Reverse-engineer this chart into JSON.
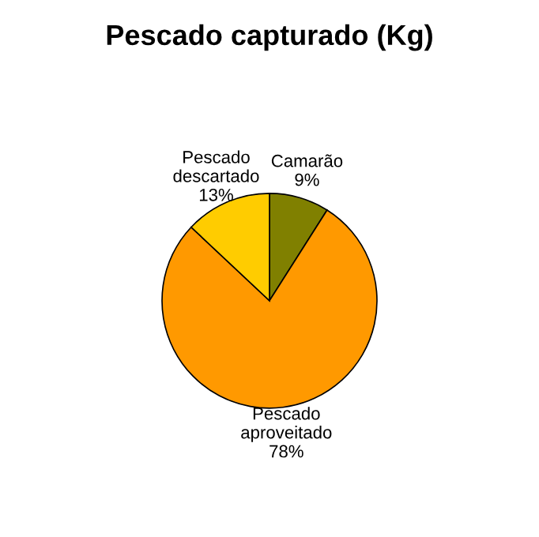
{
  "chart_data": {
    "type": "pie",
    "title": "Pescado capturado (Kg)",
    "categories": [
      "Camarão",
      "Pescado\naproveitado",
      "Pescado\ndescartado"
    ],
    "values": [
      9,
      78,
      13
    ],
    "value_labels": [
      "9%",
      "78%",
      "13%"
    ],
    "colors": [
      "#808000",
      "#ff9900",
      "#ffcc00"
    ],
    "legend": false
  }
}
